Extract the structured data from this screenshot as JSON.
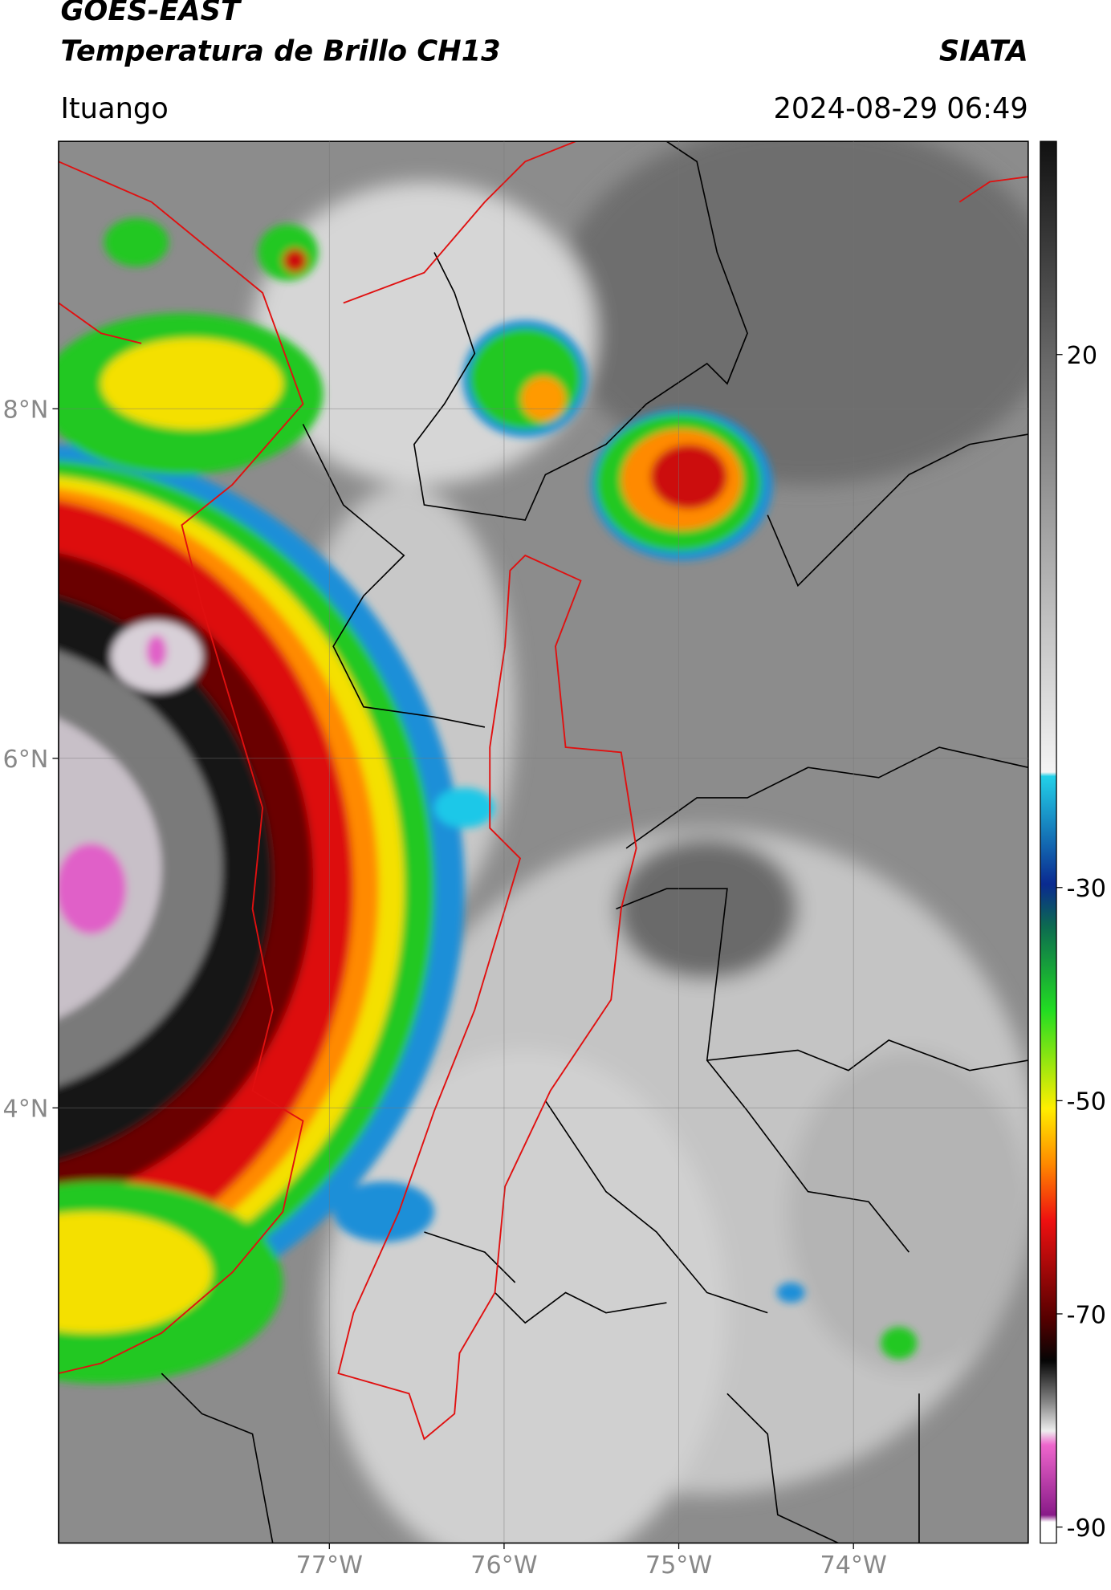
{
  "header": {
    "title": "GOES-EAST",
    "subtitle": "Temperatura de Brillo CH13",
    "source": "SIATA",
    "location": "Ituango",
    "timestamp": "2024-08-29 06:49"
  },
  "map": {
    "xlim": [
      -78.55,
      -73.0
    ],
    "ylim": [
      1.51,
      9.53
    ],
    "xticks": [
      {
        "value": -77,
        "label": "77°W"
      },
      {
        "value": -76,
        "label": "76°W"
      },
      {
        "value": -75,
        "label": "75°W"
      },
      {
        "value": -74,
        "label": "74°W"
      }
    ],
    "yticks": [
      {
        "value": 8,
        "label": "8°N"
      },
      {
        "value": 6,
        "label": "6°N"
      },
      {
        "value": 4,
        "label": "4°N"
      }
    ],
    "grid": true
  },
  "colorbar": {
    "lim": [
      -91.5,
      40
    ],
    "ticks": [
      20,
      -30,
      -50,
      -70,
      -90
    ]
  }
}
